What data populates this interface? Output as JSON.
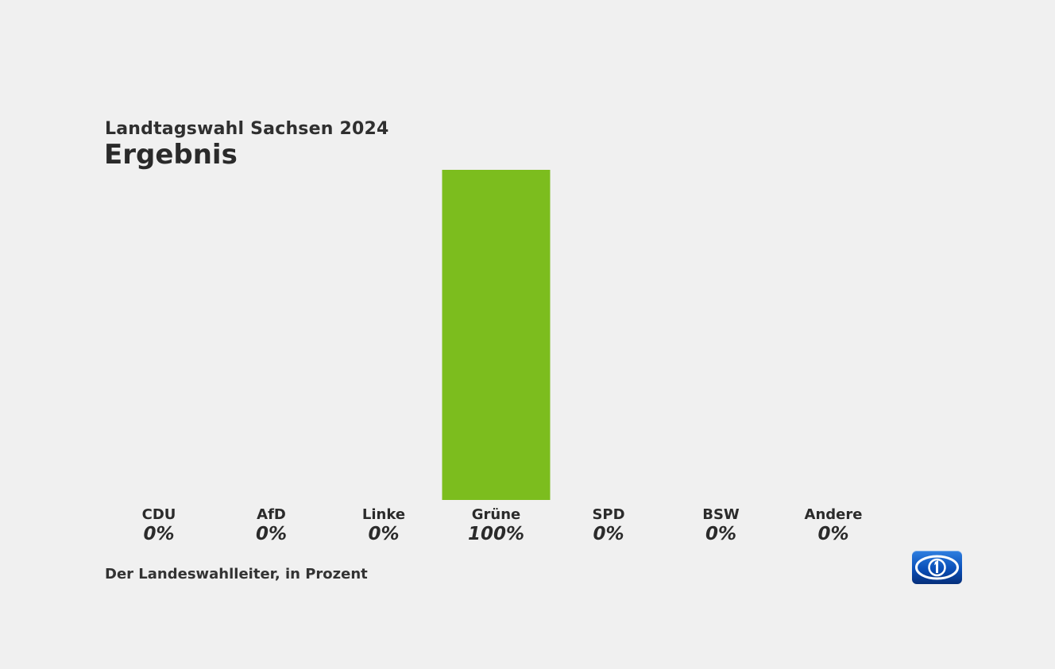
{
  "header": {
    "subtitle": "Landtagswahl Sachsen 2024",
    "title": "Ergebnis"
  },
  "footer": {
    "source": "Der Landeswahlleiter, in Prozent"
  },
  "logo": {
    "icon": "ard-das-erste-logo-icon"
  },
  "colors": {
    "background": "#f0f0f0",
    "bar_green": "#7cbd1e",
    "text": "#2b2b2b",
    "logo_blue": "#0a4fb8"
  },
  "chart_data": {
    "type": "bar",
    "title": "Ergebnis",
    "subtitle": "Landtagswahl Sachsen 2024",
    "categories": [
      "CDU",
      "AfD",
      "Linke",
      "Grüne",
      "SPD",
      "BSW",
      "Andere"
    ],
    "values": [
      0,
      0,
      0,
      100,
      0,
      0,
      0
    ],
    "value_labels": [
      "0%",
      "0%",
      "0%",
      "100%",
      "0%",
      "0%",
      "0%"
    ],
    "bar_colors": [
      "#7cbd1e",
      "#7cbd1e",
      "#7cbd1e",
      "#7cbd1e",
      "#7cbd1e",
      "#7cbd1e",
      "#7cbd1e"
    ],
    "ylim": [
      0,
      100
    ],
    "xlabel": "",
    "ylabel": "",
    "grid": false
  }
}
